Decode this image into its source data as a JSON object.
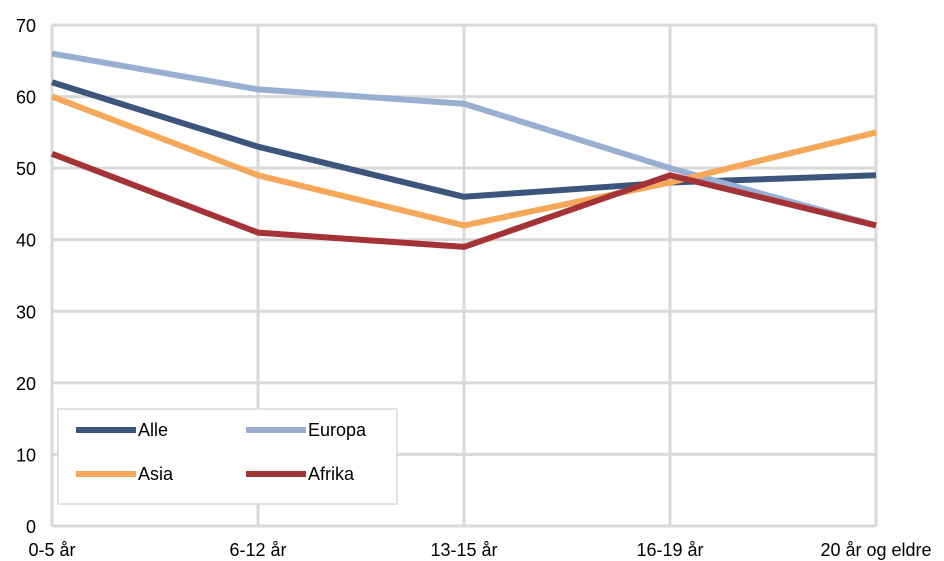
{
  "chart_data": {
    "type": "line",
    "title": "",
    "xlabel": "",
    "ylabel": "",
    "categories": [
      "0-5 år",
      "6-12 år",
      "13-15 år",
      "16-19 år",
      "20 år og eldre"
    ],
    "y_ticks": [
      "0",
      "10",
      "20",
      "30",
      "40",
      "50",
      "60",
      "70"
    ],
    "ylim": [
      0,
      70
    ],
    "grid": true,
    "legend_position": "bottom-left",
    "series": [
      {
        "name": "Alle",
        "color": "#3b557c",
        "values": [
          62,
          53,
          46,
          48,
          49
        ]
      },
      {
        "name": "Europa",
        "color": "#98afd2",
        "values": [
          66,
          61,
          59,
          50,
          42
        ]
      },
      {
        "name": "Asia",
        "color": "#f5a85a",
        "values": [
          60,
          49,
          42,
          48,
          55
        ]
      },
      {
        "name": "Afrika",
        "color": "#a33336",
        "values": [
          52,
          41,
          39,
          49,
          42
        ]
      }
    ]
  }
}
